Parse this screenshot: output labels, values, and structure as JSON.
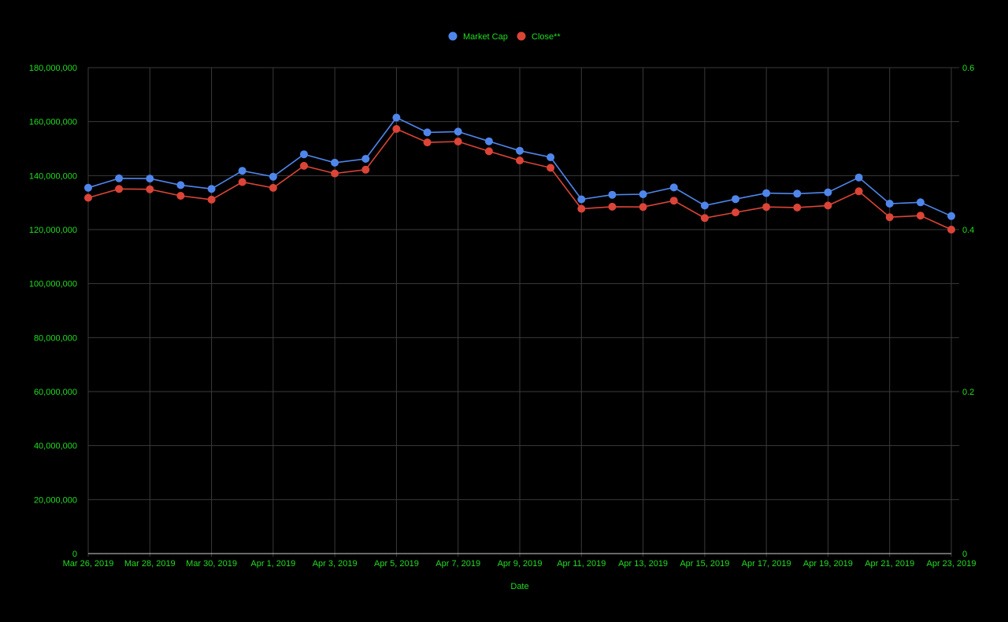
{
  "colors": {
    "background": "#000000",
    "text": "#22dd22",
    "grid": "#3a3a3a",
    "baseline": "#cfcfcf",
    "market_cap": "#4f86ec",
    "close": "#db4437"
  },
  "chart_data": {
    "type": "line",
    "title": "",
    "xlabel": "Date",
    "ylabel": "",
    "y2label": "",
    "ylim": [
      0,
      180000000
    ],
    "y2lim": [
      0,
      0.6
    ],
    "y_ticks": [
      "0",
      "20,000,000",
      "40,000,000",
      "60,000,000",
      "80,000,000",
      "100,000,000",
      "120,000,000",
      "140,000,000",
      "160,000,000",
      "180,000,000"
    ],
    "y2_ticks": [
      "0",
      "0.2",
      "0.4",
      "0.6"
    ],
    "x_ticks": [
      "Mar 26, 2019",
      "Mar 28, 2019",
      "Mar 30, 2019",
      "Apr 1, 2019",
      "Apr 3, 2019",
      "Apr 5, 2019",
      "Apr 7, 2019",
      "Apr 9, 2019",
      "Apr 11, 2019",
      "Apr 13, 2019",
      "Apr 15, 2019",
      "Apr 17, 2019",
      "Apr 19, 2019",
      "Apr 21, 2019",
      "Apr 23, 2019"
    ],
    "grid": true,
    "legend_position": "top-center",
    "x": [
      "2019-03-26",
      "2019-03-27",
      "2019-03-28",
      "2019-03-29",
      "2019-03-30",
      "2019-03-31",
      "2019-04-01",
      "2019-04-02",
      "2019-04-03",
      "2019-04-04",
      "2019-04-05",
      "2019-04-06",
      "2019-04-07",
      "2019-04-08",
      "2019-04-09",
      "2019-04-10",
      "2019-04-11",
      "2019-04-12",
      "2019-04-13",
      "2019-04-14",
      "2019-04-15",
      "2019-04-16",
      "2019-04-17",
      "2019-04-18",
      "2019-04-19",
      "2019-04-20",
      "2019-04-21",
      "2019-04-22",
      "2019-04-23"
    ],
    "series": [
      {
        "name": "Market Cap",
        "axis": "left",
        "color": "#4f86ec",
        "values": [
          135500000,
          139000000,
          138900000,
          136500000,
          135100000,
          141800000,
          139600000,
          147900000,
          144800000,
          146200000,
          161500000,
          156000000,
          156300000,
          152700000,
          149200000,
          146800000,
          131200000,
          132900000,
          133100000,
          135600000,
          128900000,
          131300000,
          133500000,
          133300000,
          133800000,
          139300000,
          129600000,
          130100000,
          125000000
        ]
      },
      {
        "name": "Close**",
        "axis": "right",
        "color": "#db4437",
        "values": [
          0.4393,
          0.4502,
          0.4498,
          0.4417,
          0.437,
          0.4587,
          0.4516,
          0.4787,
          0.4693,
          0.474,
          0.5243,
          0.5077,
          0.5087,
          0.4967,
          0.4853,
          0.4763,
          0.4257,
          0.4283,
          0.428,
          0.4357,
          0.4143,
          0.4213,
          0.428,
          0.4273,
          0.4297,
          0.4473,
          0.4153,
          0.4173,
          0.4
        ]
      }
    ]
  }
}
